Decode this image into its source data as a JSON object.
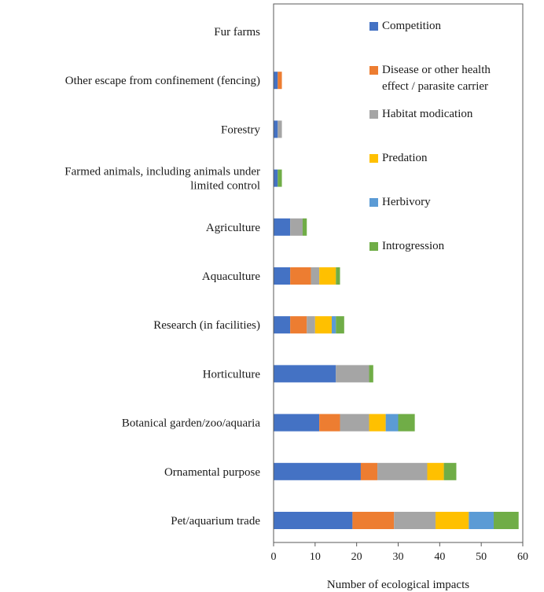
{
  "chart_data": {
    "type": "bar",
    "orientation": "horizontal",
    "stacked": true,
    "title": "",
    "xlabel": "Number of ecological impacts",
    "ylabel": "",
    "xlim": [
      0,
      60
    ],
    "xticks": [
      "0",
      "10",
      "20",
      "30",
      "40",
      "50",
      "60"
    ],
    "grid": false,
    "legend_position": "top-right",
    "categories": [
      [
        "Fur farms"
      ],
      [
        "Other escape from confinement (fencing)"
      ],
      [
        "Forestry"
      ],
      [
        "Farmed animals, including animals under",
        "limited control"
      ],
      [
        "Agriculture"
      ],
      [
        "Aquaculture"
      ],
      [
        "Research (in facilities)"
      ],
      [
        "Horticulture"
      ],
      [
        "Botanical garden/zoo/aquaria"
      ],
      [
        "Ornamental purpose"
      ],
      [
        "Pet/aquarium trade"
      ]
    ],
    "series": [
      {
        "name": [
          "Competition"
        ],
        "color": "#4472c4",
        "values": [
          0,
          1,
          1,
          1,
          4,
          4,
          4,
          15,
          11,
          21,
          19
        ]
      },
      {
        "name": [
          "Disease or other health",
          "effect / parasite carrier"
        ],
        "color": "#ed7d31",
        "values": [
          0,
          1,
          0,
          0,
          0,
          5,
          4,
          0,
          5,
          4,
          10
        ]
      },
      {
        "name": [
          "Habitat modication"
        ],
        "color": "#a5a5a5",
        "values": [
          0,
          0,
          1,
          0,
          3,
          2,
          2,
          8,
          7,
          12,
          10
        ]
      },
      {
        "name": [
          "Predation"
        ],
        "color": "#ffc000",
        "values": [
          0,
          0,
          0,
          0,
          0,
          4,
          4,
          0,
          4,
          4,
          8
        ]
      },
      {
        "name": [
          "Herbivory"
        ],
        "color": "#5b9bd5",
        "values": [
          0,
          0,
          0,
          0,
          0,
          0,
          1,
          0,
          3,
          0,
          6
        ]
      },
      {
        "name": [
          "Introgression"
        ],
        "color": "#70ad47",
        "values": [
          0,
          0,
          0,
          1,
          1,
          1,
          2,
          1,
          4,
          3,
          6
        ]
      }
    ]
  }
}
